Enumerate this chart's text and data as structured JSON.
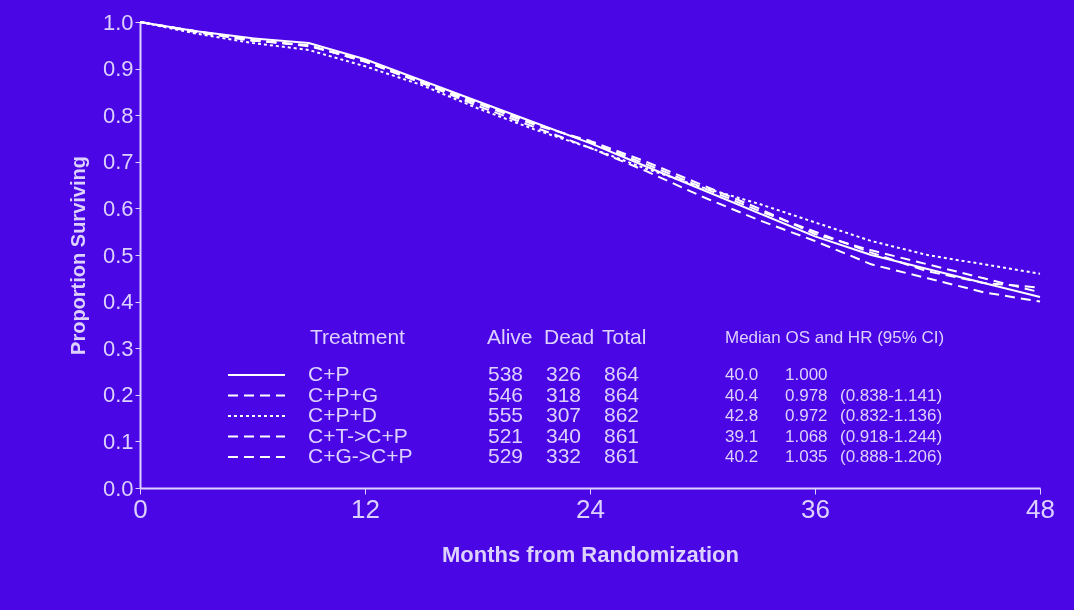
{
  "chart_data": {
    "type": "line",
    "xlabel": "Months from Randomization",
    "ylabel": "Proportion Surviving",
    "xlim": [
      0,
      48
    ],
    "xticks": [
      0,
      12,
      24,
      36,
      48
    ],
    "ylim": [
      0,
      1
    ],
    "yticks": [
      {
        "value": 0,
        "label": "0.0"
      },
      0.1,
      0.2,
      0.3,
      0.4,
      0.5,
      0.6,
      0.7,
      0.8,
      0.9,
      {
        "value": 1,
        "label": "1.0"
      }
    ],
    "grid": false,
    "legend": "bottom",
    "marker": "none",
    "x": [
      0,
      3,
      6,
      9,
      12,
      15,
      18,
      21,
      24,
      27,
      30,
      33,
      36,
      39,
      42,
      45,
      48
    ],
    "series": [
      {
        "name": "C+P",
        "color": "#ffffff",
        "line_style": "solid",
        "values": [
          1,
          0.98,
          0.965,
          0.955,
          0.92,
          0.875,
          0.83,
          0.785,
          0.74,
          0.69,
          0.64,
          0.59,
          0.54,
          0.5,
          0.47,
          0.44,
          0.41
        ]
      },
      {
        "name": "C+P+G",
        "color": "#ffffff",
        "line_style": "dashed",
        "values": [
          1,
          0.978,
          0.96,
          0.95,
          0.915,
          0.87,
          0.825,
          0.78,
          0.745,
          0.7,
          0.65,
          0.6,
          0.545,
          0.51,
          0.48,
          0.45,
          0.42
        ]
      },
      {
        "name": "C+P+D",
        "color": "#ffffff",
        "line_style": "dotted",
        "values": [
          1,
          0.975,
          0.955,
          0.94,
          0.905,
          0.865,
          0.815,
          0.77,
          0.73,
          0.685,
          0.645,
          0.61,
          0.57,
          0.53,
          0.5,
          0.48,
          0.46
        ]
      },
      {
        "name": "C+T->C+P",
        "color": "#ffffff",
        "line_style": "dashed",
        "values": [
          1,
          0.98,
          0.96,
          0.95,
          0.915,
          0.87,
          0.82,
          0.775,
          0.73,
          0.68,
          0.625,
          0.575,
          0.53,
          0.48,
          0.45,
          0.42,
          0.4
        ]
      },
      {
        "name": "C+G->C+P",
        "color": "#ffffff",
        "line_style": "dashed",
        "values": [
          1,
          0.98,
          0.962,
          0.948,
          0.918,
          0.872,
          0.828,
          0.783,
          0.742,
          0.695,
          0.645,
          0.595,
          0.55,
          0.505,
          0.465,
          0.44,
          0.43
        ]
      }
    ],
    "annotations": [
      "Treatment",
      "Alive",
      "Dead",
      "Total",
      "Median OS and HR (95% CI)",
      "538",
      "326",
      "864",
      "40.0",
      "1.000",
      "546",
      "318",
      "864",
      "40.4",
      "0.978",
      "(0.838-1.141)",
      "555",
      "307",
      "862",
      "42.8",
      "0.972",
      "(0.832-1.136)",
      "521",
      "340",
      "861",
      "39.1",
      "1.068",
      "(0.918-1.244)",
      "529",
      "332",
      "861",
      "40.2",
      "1.035",
      "(0.888-1.206)"
    ]
  }
}
